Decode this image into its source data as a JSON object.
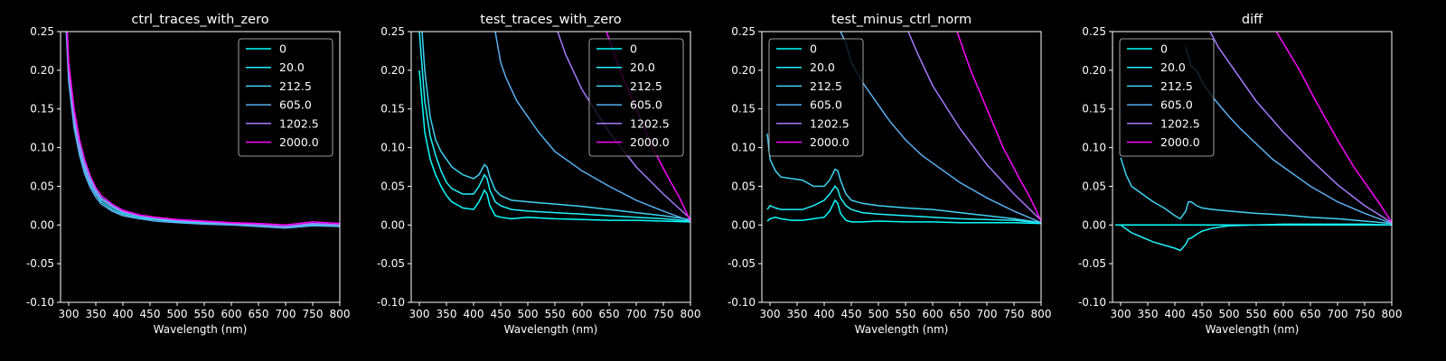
{
  "legend_series": [
    {
      "name": "0",
      "color": "#00ffff"
    },
    {
      "name": "20.0",
      "color": "#1ff2fc"
    },
    {
      "name": "212.5",
      "color": "#3fd2f2"
    },
    {
      "name": "605.0",
      "color": "#5aaff0"
    },
    {
      "name": "1202.5",
      "color": "#a779fc"
    },
    {
      "name": "2000.0",
      "color": "#ff00ff"
    }
  ],
  "chart_data": [
    {
      "type": "line",
      "title": "ctrl_traces_with_zero",
      "xlabel": "Wavelength (nm)",
      "ylabel": "",
      "xlim": [
        285,
        800
      ],
      "ylim": [
        -0.1,
        0.25
      ],
      "xticks": [
        300,
        350,
        400,
        450,
        500,
        550,
        600,
        650,
        700,
        750,
        800
      ],
      "yticks": [
        -0.1,
        -0.05,
        0.0,
        0.05,
        0.1,
        0.15,
        0.2,
        0.25
      ],
      "legend_position": "upper right",
      "series": [
        {
          "name": "0",
          "x": [
            290,
            300,
            310,
            320,
            330,
            340,
            350,
            360,
            380,
            400,
            430,
            460,
            500,
            550,
            600,
            650,
            700,
            750,
            800
          ],
          "y": [
            0.36,
            0.2,
            0.14,
            0.105,
            0.08,
            0.06,
            0.045,
            0.035,
            0.025,
            0.018,
            0.012,
            0.009,
            0.006,
            0.004,
            0.002,
            0.0,
            -0.002,
            0.002,
            0.0
          ]
        },
        {
          "name": "20.0",
          "x": [
            290,
            300,
            310,
            320,
            330,
            340,
            350,
            360,
            380,
            400,
            430,
            460,
            500,
            550,
            600,
            650,
            700,
            750,
            800
          ],
          "y": [
            0.35,
            0.195,
            0.135,
            0.1,
            0.075,
            0.057,
            0.043,
            0.033,
            0.023,
            0.016,
            0.011,
            0.008,
            0.005,
            0.003,
            0.001,
            0.0,
            -0.003,
            0.001,
            -0.001
          ]
        },
        {
          "name": "212.5",
          "x": [
            290,
            300,
            310,
            320,
            330,
            340,
            350,
            360,
            380,
            400,
            430,
            460,
            500,
            550,
            600,
            650,
            700,
            750,
            800
          ],
          "y": [
            0.34,
            0.19,
            0.13,
            0.095,
            0.07,
            0.052,
            0.04,
            0.03,
            0.02,
            0.014,
            0.009,
            0.007,
            0.004,
            0.002,
            0.001,
            -0.001,
            -0.003,
            0.0,
            -0.001
          ]
        },
        {
          "name": "605.0",
          "x": [
            290,
            300,
            310,
            320,
            330,
            340,
            350,
            360,
            380,
            400,
            430,
            460,
            500,
            550,
            600,
            650,
            700,
            750,
            800
          ],
          "y": [
            0.33,
            0.185,
            0.125,
            0.09,
            0.065,
            0.048,
            0.036,
            0.027,
            0.018,
            0.012,
            0.008,
            0.005,
            0.003,
            0.001,
            0.0,
            -0.002,
            -0.004,
            -0.001,
            -0.002
          ]
        },
        {
          "name": "1202.5",
          "x": [
            290,
            300,
            310,
            320,
            330,
            340,
            350,
            360,
            380,
            400,
            430,
            460,
            500,
            550,
            600,
            650,
            700,
            750,
            800
          ],
          "y": [
            0.35,
            0.2,
            0.14,
            0.1,
            0.075,
            0.056,
            0.043,
            0.034,
            0.024,
            0.017,
            0.012,
            0.009,
            0.006,
            0.004,
            0.002,
            0.0,
            -0.002,
            0.002,
            0.0
          ]
        },
        {
          "name": "2000.0",
          "x": [
            290,
            300,
            310,
            320,
            330,
            340,
            350,
            360,
            380,
            400,
            430,
            460,
            500,
            550,
            600,
            650,
            700,
            750,
            800
          ],
          "y": [
            0.37,
            0.21,
            0.15,
            0.11,
            0.083,
            0.063,
            0.048,
            0.038,
            0.027,
            0.019,
            0.013,
            0.01,
            0.007,
            0.005,
            0.003,
            0.002,
            0.0,
            0.004,
            0.002
          ]
        }
      ]
    },
    {
      "type": "line",
      "title": "test_traces_with_zero",
      "xlabel": "Wavelength (nm)",
      "ylabel": "",
      "xlim": [
        285,
        800
      ],
      "ylim": [
        -0.1,
        0.25
      ],
      "xticks": [
        300,
        350,
        400,
        450,
        500,
        550,
        600,
        650,
        700,
        750,
        800
      ],
      "yticks": [
        -0.1,
        -0.05,
        0.0,
        0.05,
        0.1,
        0.15,
        0.2,
        0.25
      ],
      "legend_position": "upper right",
      "series": [
        {
          "name": "0",
          "x": [
            300,
            310,
            320,
            330,
            340,
            350,
            360,
            380,
            400,
            410,
            420,
            425,
            430,
            440,
            450,
            470,
            500,
            550,
            600,
            650,
            700,
            750,
            800
          ],
          "y": [
            0.2,
            0.12,
            0.085,
            0.065,
            0.05,
            0.038,
            0.03,
            0.022,
            0.02,
            0.03,
            0.045,
            0.04,
            0.025,
            0.012,
            0.01,
            0.008,
            0.01,
            0.008,
            0.007,
            0.006,
            0.006,
            0.005,
            0.004
          ]
        },
        {
          "name": "20.0",
          "x": [
            300,
            310,
            320,
            330,
            340,
            350,
            360,
            380,
            400,
            410,
            420,
            425,
            430,
            440,
            450,
            470,
            500,
            550,
            600,
            650,
            700,
            750,
            800
          ],
          "y": [
            0.25,
            0.16,
            0.115,
            0.09,
            0.07,
            0.055,
            0.047,
            0.04,
            0.04,
            0.05,
            0.065,
            0.06,
            0.045,
            0.03,
            0.025,
            0.02,
            0.018,
            0.016,
            0.014,
            0.012,
            0.01,
            0.008,
            0.005
          ]
        },
        {
          "name": "212.5",
          "x": [
            305,
            310,
            320,
            330,
            340,
            350,
            360,
            380,
            400,
            410,
            420,
            425,
            430,
            440,
            450,
            470,
            500,
            550,
            600,
            650,
            700,
            750,
            800
          ],
          "y": [
            0.25,
            0.2,
            0.14,
            0.11,
            0.095,
            0.085,
            0.075,
            0.065,
            0.06,
            0.065,
            0.078,
            0.075,
            0.062,
            0.045,
            0.038,
            0.032,
            0.03,
            0.027,
            0.024,
            0.02,
            0.016,
            0.012,
            0.007
          ]
        },
        {
          "name": "605.0",
          "x": [
            440,
            450,
            460,
            480,
            500,
            520,
            550,
            580,
            600,
            650,
            700,
            750,
            800
          ],
          "y": [
            0.25,
            0.21,
            0.19,
            0.16,
            0.14,
            0.12,
            0.095,
            0.08,
            0.07,
            0.05,
            0.032,
            0.018,
            0.005
          ]
        },
        {
          "name": "1202.5",
          "x": [
            555,
            570,
            600,
            650,
            700,
            750,
            800
          ],
          "y": [
            0.25,
            0.22,
            0.175,
            0.12,
            0.075,
            0.04,
            0.008
          ]
        },
        {
          "name": "2000.0",
          "x": [
            645,
            670,
            700,
            730,
            760,
            780,
            800
          ],
          "y": [
            0.25,
            0.2,
            0.15,
            0.1,
            0.06,
            0.035,
            0.005
          ]
        }
      ]
    },
    {
      "type": "line",
      "title": "test_minus_ctrl_norm",
      "xlabel": "Wavelength (nm)",
      "ylabel": "",
      "xlim": [
        285,
        800
      ],
      "ylim": [
        -0.1,
        0.25
      ],
      "xticks": [
        300,
        350,
        400,
        450,
        500,
        550,
        600,
        650,
        700,
        750,
        800
      ],
      "yticks": [
        -0.1,
        -0.05,
        0.0,
        0.05,
        0.1,
        0.15,
        0.2,
        0.25
      ],
      "legend_position": "upper left",
      "series": [
        {
          "name": "0",
          "x": [
            295,
            300,
            310,
            320,
            340,
            360,
            380,
            400,
            410,
            420,
            425,
            430,
            440,
            450,
            470,
            500,
            550,
            600,
            650,
            700,
            750,
            800
          ],
          "y": [
            0.005,
            0.008,
            0.01,
            0.008,
            0.006,
            0.006,
            0.008,
            0.01,
            0.018,
            0.032,
            0.028,
            0.015,
            0.006,
            0.004,
            0.004,
            0.005,
            0.004,
            0.004,
            0.003,
            0.003,
            0.003,
            0.002
          ]
        },
        {
          "name": "20.0",
          "x": [
            295,
            300,
            310,
            320,
            340,
            360,
            380,
            400,
            410,
            420,
            425,
            430,
            440,
            450,
            470,
            500,
            550,
            600,
            650,
            700,
            750,
            800
          ],
          "y": [
            0.02,
            0.025,
            0.022,
            0.02,
            0.02,
            0.02,
            0.025,
            0.032,
            0.04,
            0.05,
            0.046,
            0.035,
            0.025,
            0.02,
            0.016,
            0.014,
            0.012,
            0.01,
            0.008,
            0.007,
            0.006,
            0.003
          ]
        },
        {
          "name": "212.5",
          "x": [
            295,
            300,
            310,
            320,
            340,
            360,
            380,
            400,
            410,
            420,
            425,
            430,
            440,
            450,
            470,
            500,
            550,
            600,
            650,
            700,
            750,
            800
          ],
          "y": [
            0.118,
            0.085,
            0.07,
            0.062,
            0.06,
            0.058,
            0.05,
            0.05,
            0.058,
            0.072,
            0.07,
            0.058,
            0.04,
            0.032,
            0.028,
            0.025,
            0.022,
            0.02,
            0.016,
            0.012,
            0.008,
            0.003
          ]
        },
        {
          "name": "605.0",
          "x": [
            430,
            440,
            450,
            470,
            500,
            520,
            550,
            580,
            600,
            650,
            700,
            750,
            800
          ],
          "y": [
            0.25,
            0.235,
            0.21,
            0.185,
            0.155,
            0.135,
            0.11,
            0.09,
            0.08,
            0.055,
            0.035,
            0.018,
            0.003
          ]
        },
        {
          "name": "1202.5",
          "x": [
            555,
            570,
            600,
            650,
            700,
            750,
            800
          ],
          "y": [
            0.25,
            0.225,
            0.18,
            0.125,
            0.078,
            0.04,
            0.006
          ]
        },
        {
          "name": "2000.0",
          "x": [
            645,
            670,
            700,
            730,
            760,
            780,
            800
          ],
          "y": [
            0.25,
            0.2,
            0.15,
            0.1,
            0.06,
            0.035,
            0.005
          ]
        }
      ]
    },
    {
      "type": "line",
      "title": "diff",
      "xlabel": "Wavelength (nm)",
      "ylabel": "",
      "xlim": [
        285,
        800
      ],
      "ylim": [
        -0.1,
        0.25
      ],
      "xticks": [
        300,
        350,
        400,
        450,
        500,
        550,
        600,
        650,
        700,
        750,
        800
      ],
      "yticks": [
        -0.1,
        -0.05,
        0.0,
        0.05,
        0.1,
        0.15,
        0.2,
        0.25
      ],
      "legend_position": "upper left",
      "series": [
        {
          "name": "0",
          "x": [
            290,
            800
          ],
          "y": [
            0.0,
            0.0
          ]
        },
        {
          "name": "20.0",
          "x": [
            300,
            310,
            320,
            340,
            360,
            380,
            400,
            410,
            420,
            425,
            430,
            440,
            450,
            470,
            500,
            550,
            600,
            650,
            700,
            750,
            800
          ],
          "y": [
            0.0,
            -0.005,
            -0.01,
            -0.016,
            -0.022,
            -0.026,
            -0.03,
            -0.033,
            -0.025,
            -0.018,
            -0.017,
            -0.012,
            -0.008,
            -0.004,
            -0.001,
            0.0,
            0.001,
            0.001,
            0.001,
            0.001,
            0.0
          ]
        },
        {
          "name": "212.5",
          "x": [
            300,
            310,
            320,
            340,
            360,
            380,
            400,
            410,
            420,
            425,
            430,
            440,
            450,
            470,
            500,
            550,
            600,
            650,
            700,
            750,
            800
          ],
          "y": [
            0.087,
            0.065,
            0.05,
            0.04,
            0.03,
            0.022,
            0.012,
            0.008,
            0.018,
            0.03,
            0.03,
            0.025,
            0.022,
            0.02,
            0.018,
            0.015,
            0.013,
            0.01,
            0.008,
            0.005,
            0.002
          ]
        },
        {
          "name": "605.0",
          "x": [
            420,
            430,
            440,
            450,
            470,
            500,
            520,
            550,
            580,
            600,
            650,
            700,
            750,
            800
          ],
          "y": [
            0.23,
            0.205,
            0.2,
            0.185,
            0.165,
            0.14,
            0.125,
            0.105,
            0.085,
            0.075,
            0.05,
            0.03,
            0.015,
            0.002
          ]
        },
        {
          "name": "1202.5",
          "x": [
            465,
            480,
            500,
            550,
            600,
            650,
            700,
            750,
            800
          ],
          "y": [
            0.25,
            0.23,
            0.21,
            0.16,
            0.12,
            0.085,
            0.052,
            0.025,
            0.003
          ]
        },
        {
          "name": "2000.0",
          "x": [
            587,
            600,
            630,
            660,
            700,
            730,
            760,
            780,
            800
          ],
          "y": [
            0.25,
            0.235,
            0.2,
            0.16,
            0.11,
            0.075,
            0.045,
            0.025,
            0.003
          ]
        }
      ]
    }
  ]
}
